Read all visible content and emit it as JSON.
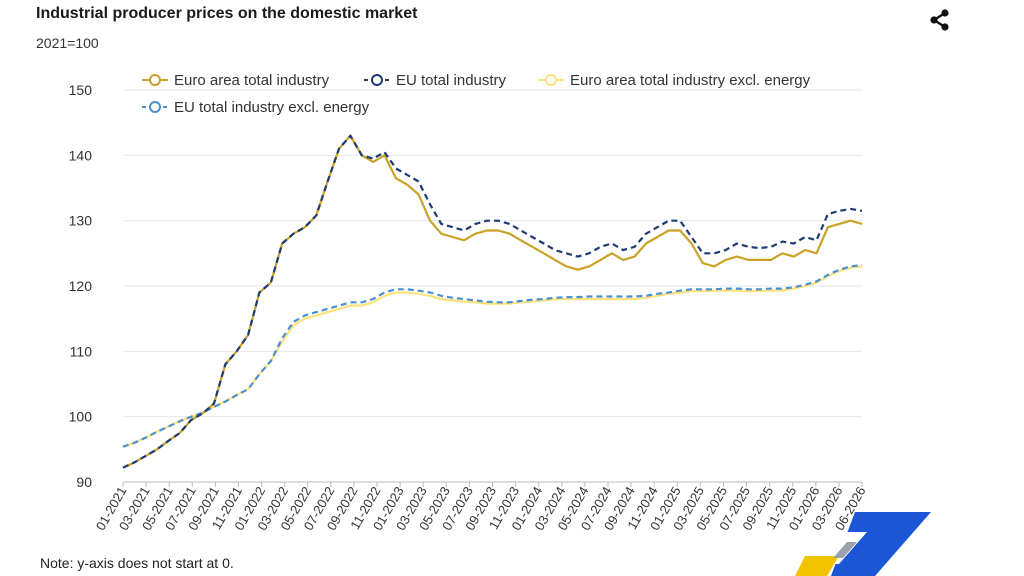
{
  "header": {
    "title": "Industrial producer prices on the domestic market",
    "subtitle": "2021=100",
    "share_icon": "share-icon"
  },
  "footer": {
    "note": "Note: y-axis does not start at 0."
  },
  "colors": {
    "euro_area": "#c9a227",
    "eu": "#1f3b73",
    "euro_area_excl": "#ffe27a",
    "eu_excl": "#4a90d0",
    "grid": "#e3e8ee",
    "logo_yellow": "#f2c400",
    "logo_blue": "#1a56d6"
  },
  "chart_data": {
    "type": "line",
    "ylim": [
      90,
      150
    ],
    "yticks": [
      90,
      100,
      110,
      120,
      130,
      140,
      150
    ],
    "x_labels": [
      "01-2021",
      "03-2021",
      "05-2021",
      "07-2021",
      "09-2021",
      "11-2021",
      "01-2022",
      "03-2022",
      "05-2022",
      "07-2022",
      "09-2022",
      "11-2022",
      "01-2023",
      "03-2023",
      "05-2023",
      "07-2023",
      "09-2023",
      "11-2023",
      "01-2024",
      "03-2024",
      "05-2024",
      "07-2024",
      "09-2024",
      "11-2024",
      "01-2025",
      "03-2025",
      "05-2025",
      "07-2025",
      "09-2025",
      "11-2025",
      "01-2026",
      "03-2026",
      "06-2026"
    ],
    "legend_position": "top",
    "grid": true,
    "series": [
      {
        "name": "Euro area total industry",
        "style": "solid",
        "values": [
          92.2,
          93.0,
          94.0,
          95.0,
          96.3,
          97.5,
          99.5,
          100.5,
          102.0,
          108.0,
          110.0,
          112.5,
          119.0,
          120.5,
          126.5,
          128.0,
          129.0,
          130.8,
          136.0,
          141.0,
          143.0,
          140.0,
          139.0,
          140.0,
          136.5,
          135.5,
          134.0,
          130.0,
          128.0,
          127.5,
          127.0,
          128.0,
          128.5,
          128.5,
          128.0,
          127.0,
          126.0,
          125.0,
          124.0,
          123.0,
          122.5,
          123.0,
          124.0,
          125.0,
          124.0,
          124.5,
          126.5,
          127.5,
          128.5,
          128.5,
          126.5,
          123.5,
          123.0,
          124.0,
          124.5,
          124.0,
          124.0,
          124.0,
          125.0,
          124.5,
          125.5,
          125.0,
          129.0,
          129.5,
          130.0,
          129.5
        ]
      },
      {
        "name": "EU total industry",
        "style": "dashed",
        "values": [
          92.2,
          93.0,
          94.0,
          95.0,
          96.3,
          97.5,
          99.5,
          100.5,
          102.0,
          108.0,
          110.0,
          112.5,
          119.0,
          120.5,
          126.5,
          128.0,
          129.0,
          130.8,
          136.0,
          141.0,
          143.0,
          140.0,
          139.5,
          140.5,
          138.0,
          137.0,
          136.0,
          132.5,
          129.5,
          129.0,
          128.5,
          129.5,
          130.0,
          130.0,
          129.5,
          128.5,
          127.5,
          126.5,
          125.5,
          125.0,
          124.5,
          125.0,
          126.0,
          126.5,
          125.5,
          126.0,
          128.0,
          129.0,
          130.0,
          130.0,
          127.5,
          125.0,
          125.0,
          125.5,
          126.5,
          126.0,
          125.8,
          126.0,
          126.8,
          126.5,
          127.5,
          127.0,
          131.0,
          131.5,
          131.8,
          131.5
        ]
      },
      {
        "name": "Euro area total industry excl. energy",
        "style": "solid",
        "values": [
          95.4,
          96.0,
          96.8,
          97.7,
          98.5,
          99.3,
          100.0,
          100.6,
          101.5,
          102.3,
          103.3,
          104.2,
          106.5,
          108.5,
          111.5,
          114.0,
          115.0,
          115.5,
          116.0,
          116.5,
          117.0,
          117.0,
          117.5,
          118.5,
          119.0,
          119.0,
          118.8,
          118.5,
          118.0,
          117.8,
          117.6,
          117.5,
          117.3,
          117.3,
          117.3,
          117.5,
          117.6,
          117.8,
          118.0,
          118.0,
          118.0,
          118.0,
          118.0,
          118.0,
          118.0,
          118.0,
          118.2,
          118.5,
          118.8,
          119.0,
          119.2,
          119.2,
          119.3,
          119.3,
          119.3,
          119.2,
          119.2,
          119.3,
          119.3,
          119.6,
          120.0,
          120.5,
          121.5,
          122.3,
          122.8,
          123.0
        ]
      },
      {
        "name": "EU total industry excl. energy",
        "style": "dashed",
        "values": [
          95.4,
          96.0,
          96.8,
          97.7,
          98.5,
          99.3,
          100.0,
          100.6,
          101.5,
          102.3,
          103.3,
          104.2,
          106.5,
          108.5,
          112.0,
          114.5,
          115.5,
          116.0,
          116.5,
          117.0,
          117.5,
          117.5,
          118.0,
          119.0,
          119.5,
          119.5,
          119.3,
          119.0,
          118.5,
          118.2,
          118.0,
          117.8,
          117.6,
          117.5,
          117.5,
          117.7,
          117.9,
          118.0,
          118.2,
          118.3,
          118.3,
          118.4,
          118.4,
          118.4,
          118.4,
          118.4,
          118.5,
          118.8,
          119.0,
          119.3,
          119.5,
          119.5,
          119.5,
          119.6,
          119.6,
          119.5,
          119.5,
          119.6,
          119.6,
          119.8,
          120.2,
          120.7,
          121.7,
          122.5,
          123.0,
          123.2
        ]
      }
    ]
  }
}
